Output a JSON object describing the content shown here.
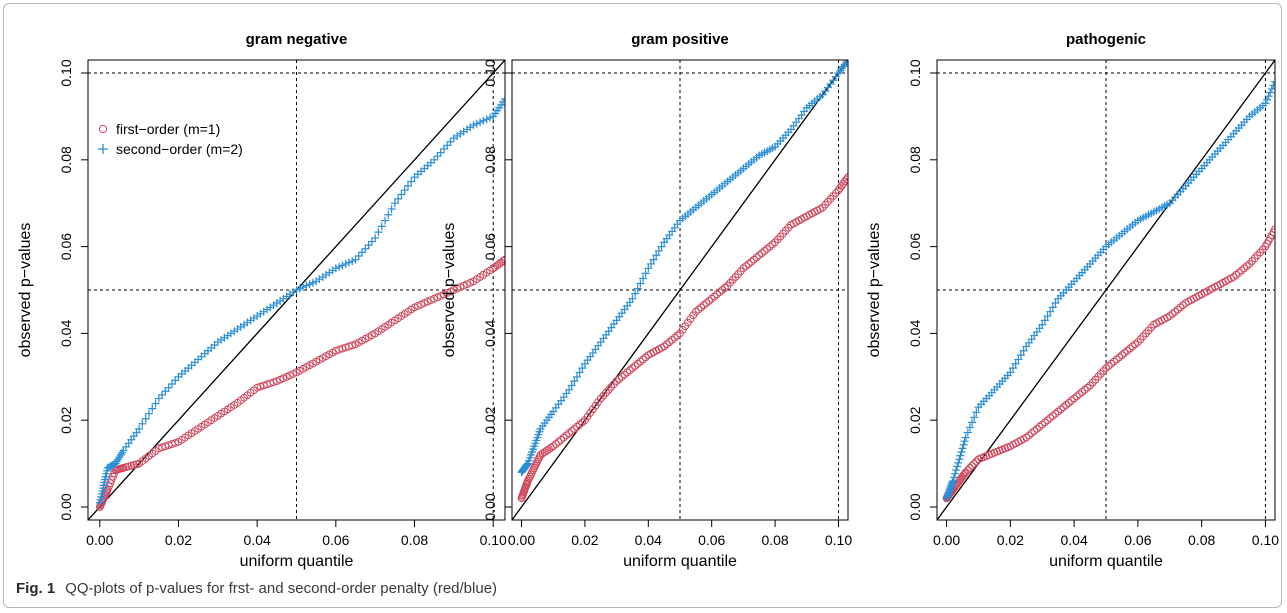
{
  "caption": {
    "label": "Fig. 1",
    "text": "QQ-plots of p-values for frst- and second-order penalty (red/blue)"
  },
  "colors": {
    "first_order": "#d0455a",
    "second_order": "#2a8fd6",
    "identity_line": "#000000",
    "reference_lines": "#000000"
  },
  "chart_data": [
    {
      "type": "scatter",
      "title": "gram negative",
      "xlabel": "uniform quantile",
      "ylabel": "observed p−values",
      "xlim": [
        -0.003,
        0.103
      ],
      "ylim": [
        -0.003,
        0.103
      ],
      "xticks": [
        0.0,
        0.02,
        0.04,
        0.06,
        0.08,
        0.1
      ],
      "xtick_labels": [
        "0.00",
        "0.02",
        "0.04",
        "0.06",
        "0.08",
        "0.10"
      ],
      "yticks": [
        0.0,
        0.02,
        0.04,
        0.06,
        0.08,
        0.1
      ],
      "ytick_labels": [
        "0.00",
        "0.02",
        "0.04",
        "0.06",
        "0.08",
        "0.10"
      ],
      "reference_lines": {
        "x": [
          0.05,
          0.1
        ],
        "y": [
          0.05,
          0.1
        ],
        "identity": true
      },
      "legend": {
        "placement": "top-left",
        "entries": [
          {
            "label": "first−order (m=1)",
            "marker": "circle"
          },
          {
            "label": "second−order (m=2)",
            "marker": "plus"
          }
        ]
      },
      "series": [
        {
          "name": "first−order (m=1)",
          "marker": "circle",
          "x": [
            0.0,
            0.001,
            0.002,
            0.004,
            0.006,
            0.01,
            0.015,
            0.02,
            0.025,
            0.03,
            0.035,
            0.04,
            0.045,
            0.05,
            0.055,
            0.06,
            0.065,
            0.07,
            0.075,
            0.08,
            0.085,
            0.09,
            0.095,
            0.1,
            0.103
          ],
          "y": [
            0.0,
            0.002,
            0.004,
            0.0085,
            0.009,
            0.01,
            0.0135,
            0.015,
            0.018,
            0.021,
            0.024,
            0.0275,
            0.029,
            0.031,
            0.0335,
            0.036,
            0.0375,
            0.04,
            0.043,
            0.046,
            0.048,
            0.05,
            0.052,
            0.055,
            0.057
          ]
        },
        {
          "name": "second−order (m=2)",
          "marker": "plus",
          "x": [
            0.0,
            0.001,
            0.002,
            0.004,
            0.006,
            0.01,
            0.015,
            0.02,
            0.025,
            0.03,
            0.035,
            0.04,
            0.045,
            0.05,
            0.055,
            0.06,
            0.065,
            0.07,
            0.075,
            0.08,
            0.085,
            0.09,
            0.095,
            0.1,
            0.103
          ],
          "y": [
            0.001,
            0.005,
            0.009,
            0.01,
            0.013,
            0.018,
            0.025,
            0.03,
            0.034,
            0.038,
            0.041,
            0.044,
            0.047,
            0.05,
            0.052,
            0.055,
            0.057,
            0.062,
            0.07,
            0.076,
            0.08,
            0.085,
            0.088,
            0.09,
            0.094
          ]
        }
      ]
    },
    {
      "type": "scatter",
      "title": "gram positive",
      "xlabel": "uniform quantile",
      "ylabel": "observed p−values",
      "xlim": [
        -0.003,
        0.103
      ],
      "ylim": [
        -0.003,
        0.103
      ],
      "xticks": [
        0.0,
        0.02,
        0.04,
        0.06,
        0.08,
        0.1
      ],
      "xtick_labels": [
        "0.00",
        "0.02",
        "0.04",
        "0.06",
        "0.08",
        "0.10"
      ],
      "yticks": [
        0.0,
        0.02,
        0.04,
        0.06,
        0.08,
        0.1
      ],
      "ytick_labels": [
        "0.00",
        "0.02",
        "0.04",
        "0.06",
        "0.08",
        "0.10"
      ],
      "reference_lines": {
        "x": [
          0.05,
          0.1
        ],
        "y": [
          0.05,
          0.1
        ],
        "identity": true
      },
      "series": [
        {
          "name": "first−order (m=1)",
          "marker": "circle",
          "x": [
            0.0,
            0.001,
            0.002,
            0.004,
            0.006,
            0.01,
            0.015,
            0.02,
            0.025,
            0.03,
            0.035,
            0.04,
            0.045,
            0.05,
            0.055,
            0.06,
            0.065,
            0.07,
            0.075,
            0.08,
            0.085,
            0.09,
            0.095,
            0.1,
            0.103
          ],
          "y": [
            0.002,
            0.004,
            0.006,
            0.009,
            0.012,
            0.014,
            0.017,
            0.02,
            0.025,
            0.029,
            0.032,
            0.035,
            0.037,
            0.04,
            0.045,
            0.048,
            0.051,
            0.055,
            0.058,
            0.061,
            0.065,
            0.067,
            0.069,
            0.073,
            0.076
          ]
        },
        {
          "name": "second−order (m=2)",
          "marker": "plus",
          "x": [
            0.0,
            0.001,
            0.002,
            0.004,
            0.006,
            0.01,
            0.015,
            0.02,
            0.025,
            0.03,
            0.035,
            0.04,
            0.045,
            0.05,
            0.055,
            0.06,
            0.065,
            0.07,
            0.075,
            0.08,
            0.085,
            0.09,
            0.095,
            0.1,
            0.103
          ],
          "y": [
            0.008,
            0.009,
            0.01,
            0.014,
            0.018,
            0.022,
            0.027,
            0.033,
            0.038,
            0.043,
            0.048,
            0.055,
            0.061,
            0.066,
            0.069,
            0.072,
            0.075,
            0.078,
            0.081,
            0.083,
            0.087,
            0.092,
            0.095,
            0.1,
            0.103
          ]
        }
      ]
    },
    {
      "type": "scatter",
      "title": "pathogenic",
      "xlabel": "uniform quantile",
      "ylabel": "observed p−values",
      "xlim": [
        -0.003,
        0.103
      ],
      "ylim": [
        -0.003,
        0.103
      ],
      "xticks": [
        0.0,
        0.02,
        0.04,
        0.06,
        0.08,
        0.1
      ],
      "xtick_labels": [
        "0.00",
        "0.02",
        "0.04",
        "0.06",
        "0.08",
        "0.10"
      ],
      "yticks": [
        0.0,
        0.02,
        0.04,
        0.06,
        0.08,
        0.1
      ],
      "ytick_labels": [
        "0.00",
        "0.02",
        "0.04",
        "0.06",
        "0.08",
        "0.10"
      ],
      "reference_lines": {
        "x": [
          0.05,
          0.1
        ],
        "y": [
          0.05,
          0.1
        ],
        "identity": true
      },
      "series": [
        {
          "name": "first−order (m=1)",
          "marker": "circle",
          "x": [
            0.0,
            0.001,
            0.002,
            0.004,
            0.006,
            0.01,
            0.015,
            0.02,
            0.025,
            0.03,
            0.035,
            0.04,
            0.045,
            0.05,
            0.055,
            0.06,
            0.065,
            0.07,
            0.075,
            0.08,
            0.085,
            0.09,
            0.095,
            0.1,
            0.103
          ],
          "y": [
            0.002,
            0.003,
            0.004,
            0.006,
            0.008,
            0.011,
            0.0125,
            0.014,
            0.016,
            0.019,
            0.022,
            0.025,
            0.028,
            0.032,
            0.035,
            0.038,
            0.042,
            0.044,
            0.047,
            0.049,
            0.051,
            0.053,
            0.056,
            0.06,
            0.064
          ]
        },
        {
          "name": "second−order (m=2)",
          "marker": "plus",
          "x": [
            0.0,
            0.001,
            0.002,
            0.004,
            0.006,
            0.01,
            0.015,
            0.02,
            0.025,
            0.03,
            0.035,
            0.04,
            0.045,
            0.05,
            0.055,
            0.06,
            0.065,
            0.07,
            0.075,
            0.08,
            0.085,
            0.09,
            0.095,
            0.1,
            0.103
          ],
          "y": [
            0.002,
            0.004,
            0.006,
            0.011,
            0.016,
            0.023,
            0.027,
            0.031,
            0.037,
            0.042,
            0.048,
            0.052,
            0.056,
            0.06,
            0.063,
            0.066,
            0.068,
            0.07,
            0.074,
            0.078,
            0.082,
            0.086,
            0.09,
            0.093,
            0.098
          ]
        }
      ]
    }
  ]
}
